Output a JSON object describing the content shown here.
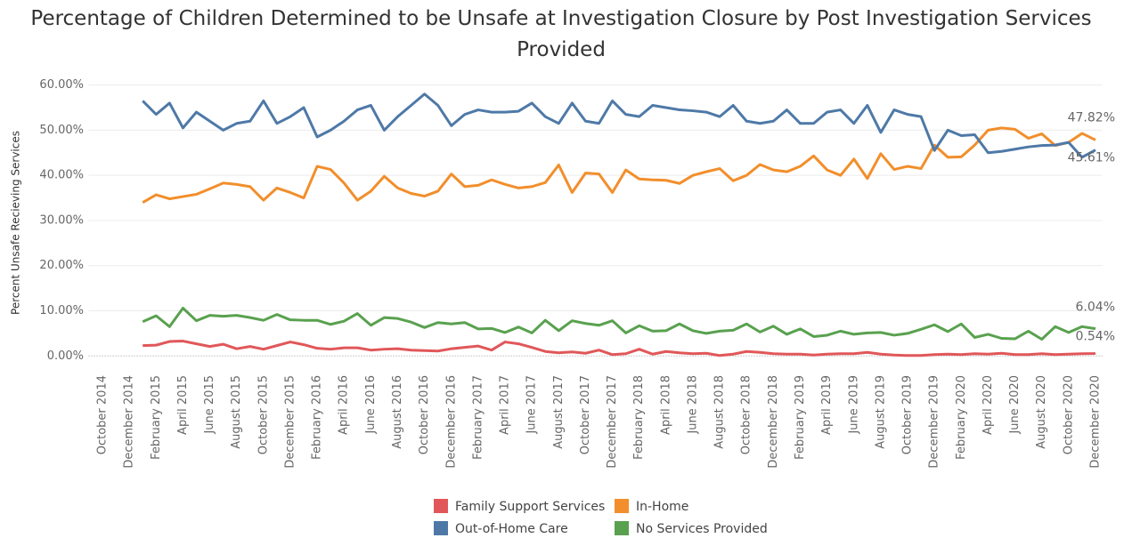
{
  "chart_data": {
    "type": "line",
    "title": "Percentage of Children Determined to be Unsafe at Investigation Closure by Post Investigation Services Provided",
    "y_label": "Percent Unsafe Recieving Services",
    "categories": [
      "October 2014",
      null,
      "December 2014",
      null,
      "February 2015",
      null,
      "April 2015",
      null,
      "June 2015",
      null,
      "August 2015",
      null,
      "October 2015",
      null,
      "December 2015",
      null,
      "February 2016",
      null,
      "April 2016",
      null,
      "June 2016",
      null,
      "August 2016",
      null,
      "October 2016",
      null,
      "December 2016",
      null,
      "February 2017",
      null,
      "April 2017",
      null,
      "June 2017",
      null,
      "August 2017",
      null,
      "October 2017",
      null,
      "December 2017",
      null,
      "February 2018",
      null,
      "April 2018",
      null,
      "June 2018",
      null,
      "August 2018",
      null,
      "October 2018",
      null,
      "December 2018",
      null,
      "February 2019",
      null,
      "April 2019",
      null,
      "June 2019",
      null,
      "August 2019",
      null,
      "October 2019",
      null,
      "December 2019",
      null,
      "February 2020",
      null,
      "April 2020",
      null,
      "June 2020",
      null,
      "August 2020",
      null,
      "October 2020",
      null,
      "December 2020"
    ],
    "series": [
      {
        "name": "Family Support Services",
        "color": "#e15759",
        "values": [
          null,
          null,
          null,
          2.3,
          2.4,
          3.2,
          3.3,
          2.7,
          2.1,
          2.6,
          1.6,
          2.1,
          1.5,
          2.3,
          3.1,
          2.5,
          1.7,
          1.5,
          1.8,
          1.8,
          1.3,
          1.5,
          1.6,
          1.3,
          1.2,
          1.1,
          1.6,
          1.9,
          2.2,
          1.3,
          3.1,
          2.7,
          1.9,
          1.0,
          0.7,
          0.9,
          0.6,
          1.3,
          0.3,
          0.5,
          1.5,
          0.4,
          1.0,
          0.7,
          0.5,
          0.6,
          0.1,
          0.4,
          1.0,
          0.8,
          0.5,
          0.4,
          0.4,
          0.2,
          0.4,
          0.5,
          0.5,
          0.8,
          0.4,
          0.2,
          0.1,
          0.1,
          0.3,
          0.4,
          0.3,
          0.5,
          0.4,
          0.6,
          0.3,
          0.3,
          0.5,
          0.3,
          0.4,
          0.5,
          0.54
        ],
        "value_labels": [
          null,
          null,
          null,
          null,
          null,
          null,
          null,
          null,
          null,
          null,
          null,
          null,
          null,
          null,
          null,
          null,
          null,
          null,
          null,
          null,
          null,
          null,
          null,
          null,
          null,
          null,
          null,
          null,
          null,
          null,
          null,
          null,
          null,
          null,
          null,
          null,
          null,
          null,
          null,
          null,
          null,
          null,
          null,
          null,
          null,
          null,
          null,
          null,
          null,
          null,
          null,
          null,
          null,
          null,
          null,
          null,
          null,
          null,
          null,
          null,
          null,
          null,
          null,
          null,
          null,
          null,
          null,
          null,
          null,
          null,
          null,
          null,
          null,
          null,
          "0.54%"
        ]
      },
      {
        "name": "In-Home",
        "color": "#f28e2b",
        "values": [
          null,
          null,
          null,
          34.0,
          35.7,
          34.8,
          35.3,
          35.8,
          37.0,
          38.3,
          38.0,
          37.5,
          34.5,
          37.2,
          36.2,
          35.0,
          42.0,
          41.3,
          38.3,
          34.5,
          36.5,
          39.8,
          37.2,
          36.0,
          35.4,
          36.5,
          40.3,
          37.5,
          37.8,
          39.0,
          38.0,
          37.2,
          37.5,
          38.4,
          42.3,
          36.2,
          40.5,
          40.3,
          36.2,
          41.2,
          39.2,
          39.0,
          38.9,
          38.2,
          40.0,
          40.8,
          41.5,
          38.8,
          40.0,
          42.4,
          41.2,
          40.8,
          42.0,
          44.3,
          41.2,
          40.0,
          43.6,
          39.3,
          44.8,
          41.3,
          42.0,
          41.5,
          46.7,
          44.0,
          44.1,
          46.7,
          50.0,
          50.5,
          50.2,
          48.2,
          49.2,
          46.6,
          47.3,
          49.3,
          47.82
        ],
        "value_labels": [
          null,
          null,
          null,
          null,
          null,
          null,
          null,
          null,
          null,
          null,
          null,
          null,
          null,
          null,
          null,
          null,
          null,
          null,
          null,
          null,
          null,
          null,
          null,
          null,
          null,
          null,
          null,
          null,
          null,
          null,
          null,
          null,
          null,
          null,
          null,
          null,
          null,
          null,
          null,
          null,
          null,
          null,
          null,
          null,
          null,
          null,
          null,
          null,
          null,
          null,
          null,
          null,
          null,
          null,
          null,
          null,
          null,
          null,
          null,
          null,
          null,
          null,
          null,
          null,
          null,
          null,
          null,
          null,
          null,
          null,
          null,
          null,
          null,
          null,
          "47.82%"
        ]
      },
      {
        "name": "Out-of-Home Care",
        "color": "#4e79a7",
        "values": [
          null,
          null,
          null,
          56.5,
          53.5,
          56.0,
          50.5,
          54.0,
          52.0,
          50.0,
          51.5,
          52.0,
          56.5,
          51.5,
          53.0,
          55.0,
          48.5,
          50.0,
          52.0,
          54.5,
          55.5,
          50.0,
          53.0,
          55.5,
          58.0,
          55.5,
          51.0,
          53.5,
          54.5,
          54.0,
          54.0,
          54.2,
          56.0,
          53.0,
          51.5,
          56.0,
          52.0,
          51.5,
          56.5,
          53.5,
          53.0,
          55.5,
          55.0,
          54.5,
          54.3,
          54.0,
          53.0,
          55.5,
          52.0,
          51.5,
          52.0,
          54.5,
          51.5,
          51.5,
          54.0,
          54.5,
          51.5,
          55.5,
          49.5,
          54.5,
          53.5,
          53.0,
          45.5,
          50.0,
          48.8,
          49.0,
          45.0,
          45.3,
          45.8,
          46.3,
          46.6,
          46.7,
          47.3,
          44.0,
          45.61
        ],
        "value_labels": [
          null,
          null,
          null,
          null,
          null,
          null,
          null,
          null,
          null,
          null,
          null,
          null,
          null,
          null,
          null,
          null,
          null,
          null,
          null,
          null,
          null,
          null,
          null,
          null,
          null,
          null,
          null,
          null,
          null,
          null,
          null,
          null,
          null,
          null,
          null,
          null,
          null,
          null,
          null,
          null,
          null,
          null,
          null,
          null,
          null,
          null,
          null,
          null,
          null,
          null,
          null,
          null,
          null,
          null,
          null,
          null,
          null,
          null,
          null,
          null,
          null,
          null,
          null,
          null,
          null,
          null,
          null,
          null,
          null,
          null,
          null,
          null,
          null,
          null,
          "45.61%"
        ]
      },
      {
        "name": "No Services Provided",
        "color": "#59a14f",
        "values": [
          null,
          null,
          null,
          7.6,
          8.9,
          6.5,
          10.6,
          7.8,
          9.0,
          8.8,
          9.0,
          8.5,
          7.9,
          9.2,
          8.0,
          7.9,
          7.9,
          7.0,
          7.7,
          9.4,
          6.8,
          8.5,
          8.3,
          7.5,
          6.3,
          7.4,
          7.1,
          7.4,
          6.0,
          6.1,
          5.2,
          6.4,
          5.1,
          7.9,
          5.6,
          7.8,
          7.2,
          6.8,
          7.8,
          5.1,
          6.7,
          5.5,
          5.6,
          7.1,
          5.6,
          5.0,
          5.5,
          5.7,
          7.1,
          5.3,
          6.6,
          4.8,
          6.0,
          4.3,
          4.6,
          5.5,
          4.8,
          5.1,
          5.2,
          4.6,
          5.0,
          5.9,
          6.9,
          5.4,
          7.1,
          4.1,
          4.8,
          3.9,
          3.8,
          5.5,
          3.7,
          6.5,
          5.2,
          6.5,
          6.04
        ],
        "value_labels": [
          null,
          null,
          null,
          null,
          null,
          null,
          null,
          null,
          null,
          null,
          null,
          null,
          null,
          null,
          null,
          null,
          null,
          null,
          null,
          null,
          null,
          null,
          null,
          null,
          null,
          null,
          null,
          null,
          null,
          null,
          null,
          null,
          null,
          null,
          null,
          null,
          null,
          null,
          null,
          null,
          null,
          null,
          null,
          null,
          null,
          null,
          null,
          null,
          null,
          null,
          null,
          null,
          null,
          null,
          null,
          null,
          null,
          null,
          null,
          null,
          null,
          null,
          null,
          null,
          null,
          null,
          null,
          null,
          null,
          null,
          null,
          null,
          null,
          null,
          "6.04%"
        ]
      }
    ],
    "ylim": [
      -2.5,
      61.5
    ],
    "yticks": [
      {
        "value": 0,
        "label": "0.00%"
      },
      {
        "value": 10,
        "label": "10.00%"
      },
      {
        "value": 20,
        "label": "20.00%"
      },
      {
        "value": 30,
        "label": "30.00%"
      },
      {
        "value": 40,
        "label": "40.00%"
      },
      {
        "value": 50,
        "label": "50.00%"
      },
      {
        "value": 60,
        "label": "60.00%"
      }
    ],
    "grid": true
  }
}
